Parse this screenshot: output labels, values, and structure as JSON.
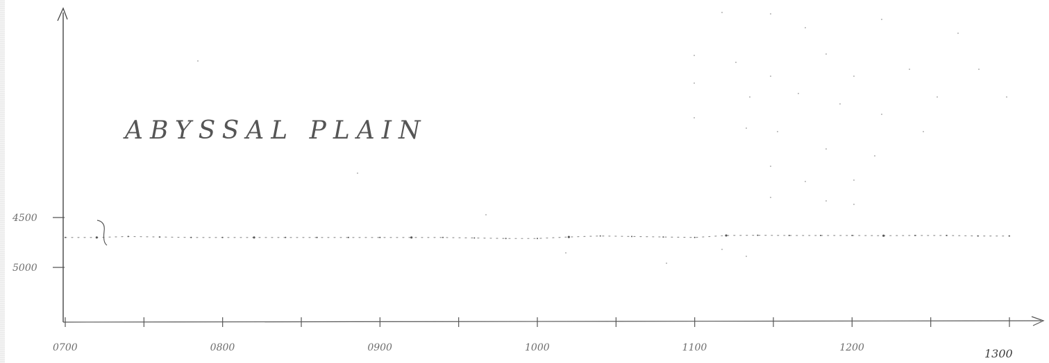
{
  "chart_data": {
    "type": "line",
    "title": "",
    "xlabel": "",
    "ylabel": "",
    "annotation": "ABYSSAL   PLAIN",
    "x_ticks": [
      "0700",
      "0800",
      "0900",
      "1000",
      "1100",
      "1200",
      "1300"
    ],
    "y_ticks": [
      "4500",
      "5000"
    ],
    "y_direction": "depth increasing downward",
    "xlim": [
      700,
      1300
    ],
    "ylim": [
      4000,
      5500
    ],
    "grid": false,
    "series": [
      {
        "values": [
          {
            "x": 700,
            "y": 4700
          },
          {
            "x": 720,
            "y": 4700
          },
          {
            "x": 740,
            "y": 4690
          },
          {
            "x": 760,
            "y": 4695
          },
          {
            "x": 780,
            "y": 4700
          },
          {
            "x": 800,
            "y": 4700
          },
          {
            "x": 820,
            "y": 4700
          },
          {
            "x": 840,
            "y": 4700
          },
          {
            "x": 860,
            "y": 4700
          },
          {
            "x": 880,
            "y": 4700
          },
          {
            "x": 900,
            "y": 4700
          },
          {
            "x": 920,
            "y": 4700
          },
          {
            "x": 940,
            "y": 4700
          },
          {
            "x": 960,
            "y": 4705
          },
          {
            "x": 980,
            "y": 4710
          },
          {
            "x": 1000,
            "y": 4710
          },
          {
            "x": 1020,
            "y": 4695
          },
          {
            "x": 1040,
            "y": 4685
          },
          {
            "x": 1060,
            "y": 4690
          },
          {
            "x": 1080,
            "y": 4695
          },
          {
            "x": 1100,
            "y": 4700
          },
          {
            "x": 1120,
            "y": 4680
          },
          {
            "x": 1140,
            "y": 4678
          },
          {
            "x": 1160,
            "y": 4680
          },
          {
            "x": 1180,
            "y": 4680
          },
          {
            "x": 1200,
            "y": 4680
          },
          {
            "x": 1220,
            "y": 4682
          },
          {
            "x": 1240,
            "y": 4680
          },
          {
            "x": 1260,
            "y": 4680
          },
          {
            "x": 1280,
            "y": 4685
          },
          {
            "x": 1300,
            "y": 4685
          }
        ]
      }
    ]
  }
}
